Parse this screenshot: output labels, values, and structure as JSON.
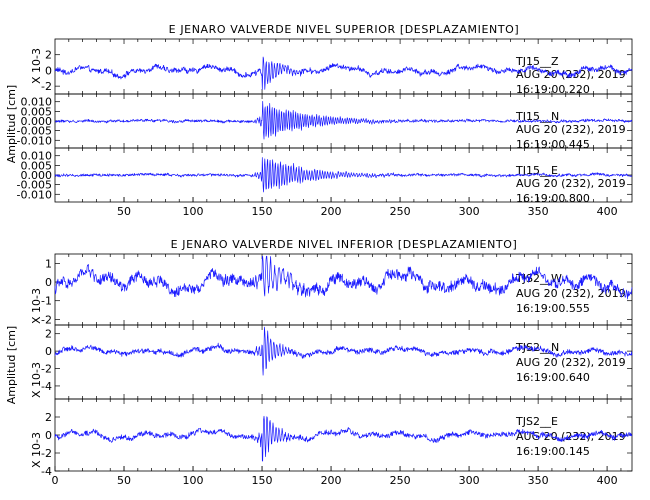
{
  "chart_data": [
    {
      "type": "line",
      "title": "E JENARO VALVERDE NIVEL SUPERIOR [DESPLAZAMIENTO]",
      "ylabel": "Amplitud [cm]",
      "xlim": [
        0,
        418
      ],
      "xticks": [
        50,
        100,
        150,
        200,
        250,
        300,
        350,
        400
      ],
      "trace_color": "#1a1aff",
      "series": [
        {
          "name": "TJ15__Z",
          "ylim": [
            -3,
            4
          ],
          "yticks": [
            -2,
            0,
            2
          ],
          "yticklabels": [
            "-2",
            "0",
            "2"
          ],
          "scale_label": "X 10-3",
          "annotation": [
            "TJ15__Z",
            "AUG 20 (232), 2019",
            "16:19:00.220"
          ],
          "event_x": 150,
          "noise_amp": 0.4,
          "peak_amp": 2.6,
          "decay": 11,
          "period": 2.0,
          "wander": 0.5
        },
        {
          "name": "TJ15__N",
          "ylim": [
            -0.014,
            0.014
          ],
          "yticks": [
            -0.01,
            -0.005,
            0.0,
            0.005,
            0.01
          ],
          "yticklabels": [
            "-0.010",
            "-0.005",
            "0.000",
            "0.005",
            "0.010"
          ],
          "scale_label": "",
          "annotation": [
            "TJ15__N",
            "AUG 20 (232), 2019",
            "16:19:00.445"
          ],
          "event_x": 150,
          "noise_amp": 0.0008,
          "peak_amp": 0.011,
          "decay": 30,
          "period": 1.7,
          "wander": 0.0003
        },
        {
          "name": "TJ15__E",
          "ylim": [
            -0.014,
            0.014
          ],
          "yticks": [
            -0.01,
            -0.005,
            0.0,
            0.005,
            0.01
          ],
          "yticklabels": [
            "-0.010",
            "-0.005",
            "0.000",
            "0.005",
            "0.010"
          ],
          "scale_label": "",
          "annotation": [
            "TJ15__E",
            "AUG 20 (232), 2019",
            "16:19:00.800"
          ],
          "event_x": 150,
          "noise_amp": 0.0008,
          "peak_amp": 0.011,
          "decay": 28,
          "period": 1.9,
          "wander": 0.0003
        }
      ]
    },
    {
      "type": "line",
      "title": "E JENARO VALVERDE NIVEL INFERIOR [DESPLAZAMIENTO]",
      "ylabel": "Amplitud [cm]",
      "xlim": [
        0,
        418
      ],
      "xticks": [
        0,
        50,
        100,
        150,
        200,
        250,
        300,
        350,
        400
      ],
      "trace_color": "#1a1aff",
      "series": [
        {
          "name": "TJS2__W",
          "ylim": [
            -2.3,
            1.5
          ],
          "yticks": [
            -2,
            -1,
            0,
            1
          ],
          "yticklabels": [
            "-2",
            "-1",
            "0",
            "1"
          ],
          "scale_label": "X 10-3",
          "annotation": [
            "TJS2__W",
            "AUG 20 (232), 2019",
            "16:19:00.555"
          ],
          "event_x": 150,
          "noise_amp": 0.35,
          "peak_amp": 1.4,
          "decay": 14,
          "period": 3.0,
          "wander": 0.45
        },
        {
          "name": "TJS2__N",
          "ylim": [
            -5.5,
            3
          ],
          "yticks": [
            -4,
            -2,
            0,
            2
          ],
          "yticklabels": [
            "-4",
            "-2",
            "0",
            "2"
          ],
          "scale_label": "X 10-3",
          "annotation": [
            "TJS2__N",
            "AUG 20 (232), 2019",
            "16:19:00.640"
          ],
          "event_x": 150,
          "noise_amp": 0.35,
          "peak_amp": 3.5,
          "decay": 8,
          "period": 2.2,
          "wander": 0.35
        },
        {
          "name": "TJS2__E",
          "ylim": [
            -4,
            4
          ],
          "yticks": [
            -4,
            -2,
            0,
            2
          ],
          "yticklabels": [
            "-4",
            "-2",
            "0",
            "2"
          ],
          "scale_label": "X 10-3",
          "annotation": [
            "TJS2__E",
            "AUG 20 (232), 2019",
            "16:19:00.145"
          ],
          "event_x": 150,
          "noise_amp": 0.35,
          "peak_amp": 3.6,
          "decay": 8,
          "period": 2.2,
          "wander": 0.4
        }
      ]
    }
  ]
}
